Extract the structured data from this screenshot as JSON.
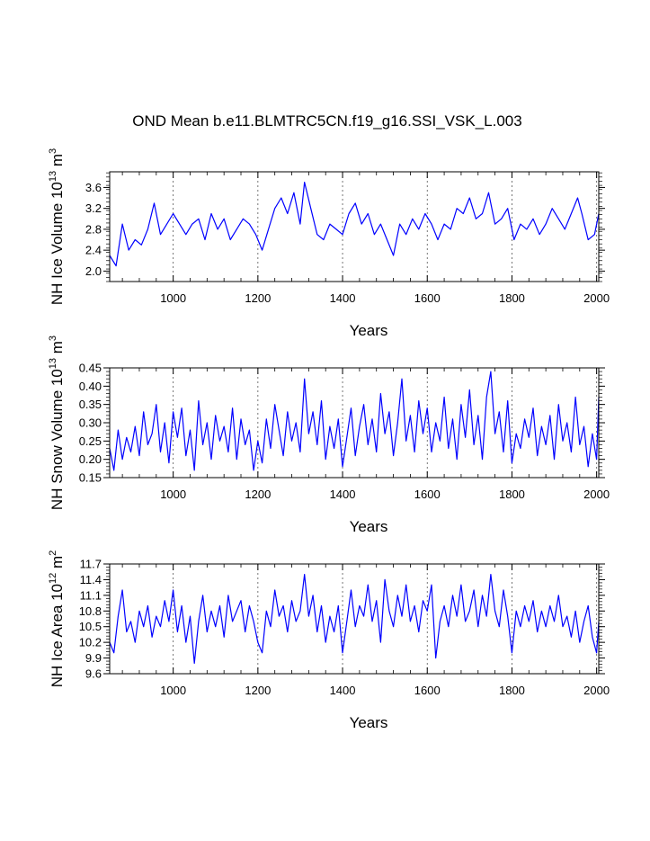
{
  "figure": {
    "title": "OND Mean b.e11.BLMTRC5CN.f19_g16.SSI_VSK_L.003"
  },
  "style": {
    "line_color": "#0000ff",
    "axis_color": "#000000",
    "grid_color": "#555555"
  },
  "chart_data": [
    {
      "type": "line",
      "ylabel": "NH Ice Volume 10",
      "ylabel_exp": "13",
      "ylabel_unit": " m",
      "ylabel_unit_exp": "3",
      "xlabel": "Years",
      "xlim": [
        850,
        2005
      ],
      "ylim": [
        1.8,
        3.9
      ],
      "xticks": [
        1000,
        1200,
        1400,
        1600,
        1800,
        2000
      ],
      "xtick_labels": [
        "1000",
        "1200",
        "1400",
        "1600",
        "1800",
        "2000"
      ],
      "yticks": [
        2.0,
        2.4,
        2.8,
        3.2,
        3.6
      ],
      "ytick_labels": [
        "2.0",
        "2.4",
        "2.8",
        "3.2",
        "3.6"
      ],
      "grid": "vertical dashed at major x ticks",
      "series": [
        {
          "x": [
            850,
            865,
            880,
            895,
            910,
            925,
            940,
            955,
            970,
            985,
            1000,
            1015,
            1030,
            1045,
            1060,
            1075,
            1090,
            1105,
            1120,
            1135,
            1150,
            1165,
            1180,
            1195,
            1210,
            1225,
            1240,
            1255,
            1270,
            1285,
            1300,
            1310,
            1325,
            1340,
            1355,
            1370,
            1385,
            1400,
            1415,
            1430,
            1445,
            1460,
            1475,
            1490,
            1505,
            1520,
            1535,
            1550,
            1565,
            1580,
            1595,
            1610,
            1625,
            1640,
            1655,
            1670,
            1685,
            1700,
            1715,
            1730,
            1745,
            1760,
            1775,
            1790,
            1805,
            1820,
            1835,
            1850,
            1865,
            1880,
            1895,
            1910,
            1925,
            1940,
            1955,
            1965,
            1980,
            1995,
            2005
          ],
          "y": [
            2.3,
            2.1,
            2.9,
            2.4,
            2.6,
            2.5,
            2.8,
            3.3,
            2.7,
            2.9,
            3.1,
            2.9,
            2.7,
            2.9,
            3.0,
            2.6,
            3.1,
            2.8,
            3.0,
            2.6,
            2.8,
            3.0,
            2.9,
            2.7,
            2.4,
            2.8,
            3.2,
            3.4,
            3.1,
            3.5,
            2.9,
            3.7,
            3.2,
            2.7,
            2.6,
            2.9,
            2.8,
            2.7,
            3.1,
            3.3,
            2.9,
            3.1,
            2.7,
            2.9,
            2.6,
            2.3,
            2.9,
            2.7,
            3.0,
            2.8,
            3.1,
            2.9,
            2.6,
            2.9,
            2.8,
            3.2,
            3.1,
            3.4,
            3.0,
            3.1,
            3.5,
            2.9,
            3.0,
            3.2,
            2.6,
            2.9,
            2.8,
            3.0,
            2.7,
            2.9,
            3.2,
            3.0,
            2.8,
            3.1,
            3.4,
            3.1,
            2.6,
            2.7,
            3.1
          ]
        }
      ]
    },
    {
      "type": "line",
      "ylabel": "NH Snow Volume 10",
      "ylabel_exp": "13",
      "ylabel_unit": " m",
      "ylabel_unit_exp": "3",
      "xlabel": "Years",
      "xlim": [
        850,
        2005
      ],
      "ylim": [
        0.15,
        0.45
      ],
      "xticks": [
        1000,
        1200,
        1400,
        1600,
        1800,
        2000
      ],
      "xtick_labels": [
        "1000",
        "1200",
        "1400",
        "1600",
        "1800",
        "2000"
      ],
      "yticks": [
        0.15,
        0.2,
        0.25,
        0.3,
        0.35,
        0.4,
        0.45
      ],
      "ytick_labels": [
        "0.15",
        "0.20",
        "0.25",
        "0.30",
        "0.35",
        "0.40",
        "0.45"
      ],
      "grid": "vertical dashed at major x ticks",
      "series": [
        {
          "x": [
            850,
            860,
            870,
            880,
            890,
            900,
            910,
            920,
            930,
            940,
            950,
            960,
            970,
            980,
            990,
            1000,
            1010,
            1020,
            1030,
            1040,
            1050,
            1060,
            1070,
            1080,
            1090,
            1100,
            1110,
            1120,
            1130,
            1140,
            1150,
            1160,
            1170,
            1180,
            1190,
            1200,
            1210,
            1220,
            1230,
            1240,
            1250,
            1260,
            1270,
            1280,
            1290,
            1300,
            1310,
            1320,
            1330,
            1340,
            1350,
            1360,
            1370,
            1380,
            1390,
            1400,
            1410,
            1420,
            1430,
            1440,
            1450,
            1460,
            1470,
            1480,
            1490,
            1500,
            1510,
            1520,
            1530,
            1540,
            1550,
            1560,
            1570,
            1580,
            1590,
            1600,
            1610,
            1620,
            1630,
            1640,
            1650,
            1660,
            1670,
            1680,
            1690,
            1700,
            1710,
            1720,
            1730,
            1740,
            1750,
            1760,
            1770,
            1780,
            1790,
            1800,
            1810,
            1820,
            1830,
            1840,
            1850,
            1860,
            1870,
            1880,
            1890,
            1900,
            1910,
            1920,
            1930,
            1940,
            1950,
            1960,
            1970,
            1980,
            1990,
            2000,
            2005
          ],
          "y": [
            0.23,
            0.17,
            0.28,
            0.2,
            0.26,
            0.22,
            0.29,
            0.21,
            0.33,
            0.24,
            0.27,
            0.35,
            0.22,
            0.3,
            0.19,
            0.33,
            0.26,
            0.34,
            0.21,
            0.28,
            0.17,
            0.36,
            0.24,
            0.3,
            0.2,
            0.32,
            0.25,
            0.29,
            0.22,
            0.34,
            0.2,
            0.31,
            0.24,
            0.28,
            0.17,
            0.25,
            0.19,
            0.31,
            0.23,
            0.35,
            0.28,
            0.21,
            0.33,
            0.25,
            0.3,
            0.22,
            0.42,
            0.27,
            0.33,
            0.24,
            0.36,
            0.2,
            0.29,
            0.23,
            0.31,
            0.18,
            0.26,
            0.34,
            0.21,
            0.29,
            0.35,
            0.24,
            0.31,
            0.22,
            0.38,
            0.27,
            0.33,
            0.21,
            0.3,
            0.42,
            0.25,
            0.32,
            0.22,
            0.36,
            0.27,
            0.34,
            0.22,
            0.3,
            0.25,
            0.37,
            0.23,
            0.31,
            0.2,
            0.35,
            0.26,
            0.39,
            0.24,
            0.32,
            0.2,
            0.37,
            0.44,
            0.27,
            0.33,
            0.22,
            0.36,
            0.19,
            0.27,
            0.23,
            0.31,
            0.26,
            0.34,
            0.21,
            0.29,
            0.24,
            0.32,
            0.2,
            0.35,
            0.25,
            0.3,
            0.22,
            0.37,
            0.24,
            0.29,
            0.18,
            0.27,
            0.2,
            0.37
          ]
        }
      ]
    },
    {
      "type": "line",
      "ylabel": "NH Ice Area 10",
      "ylabel_exp": "12",
      "ylabel_unit": " m",
      "ylabel_unit_exp": "2",
      "xlabel": "Years",
      "xlim": [
        850,
        2005
      ],
      "ylim": [
        9.6,
        11.7
      ],
      "xticks": [
        1000,
        1200,
        1400,
        1600,
        1800,
        2000
      ],
      "xtick_labels": [
        "1000",
        "1200",
        "1400",
        "1600",
        "1800",
        "2000"
      ],
      "yticks": [
        9.6,
        9.9,
        10.2,
        10.5,
        10.8,
        11.1,
        11.4,
        11.7
      ],
      "ytick_labels": [
        "9.6",
        "9.9",
        "10.2",
        "10.5",
        "10.8",
        "11.1",
        "11.4",
        "11.7"
      ],
      "grid": "vertical dashed at major x ticks",
      "series": [
        {
          "x": [
            850,
            860,
            870,
            880,
            890,
            900,
            910,
            920,
            930,
            940,
            950,
            960,
            970,
            980,
            990,
            1000,
            1010,
            1020,
            1030,
            1040,
            1050,
            1060,
            1070,
            1080,
            1090,
            1100,
            1110,
            1120,
            1130,
            1140,
            1150,
            1160,
            1170,
            1180,
            1190,
            1200,
            1210,
            1220,
            1230,
            1240,
            1250,
            1260,
            1270,
            1280,
            1290,
            1300,
            1310,
            1320,
            1330,
            1340,
            1350,
            1360,
            1370,
            1380,
            1390,
            1400,
            1410,
            1420,
            1430,
            1440,
            1450,
            1460,
            1470,
            1480,
            1490,
            1500,
            1510,
            1520,
            1530,
            1540,
            1550,
            1560,
            1570,
            1580,
            1590,
            1600,
            1610,
            1620,
            1630,
            1640,
            1650,
            1660,
            1670,
            1680,
            1690,
            1700,
            1710,
            1720,
            1730,
            1740,
            1750,
            1760,
            1770,
            1780,
            1790,
            1800,
            1810,
            1820,
            1830,
            1840,
            1850,
            1860,
            1870,
            1880,
            1890,
            1900,
            1910,
            1920,
            1930,
            1940,
            1950,
            1960,
            1970,
            1980,
            1990,
            2000,
            2005
          ],
          "y": [
            10.2,
            10.0,
            10.7,
            11.2,
            10.4,
            10.6,
            10.2,
            10.8,
            10.5,
            10.9,
            10.3,
            10.7,
            10.5,
            11.0,
            10.6,
            11.2,
            10.4,
            10.9,
            10.2,
            10.7,
            9.8,
            10.6,
            11.1,
            10.4,
            10.8,
            10.5,
            10.9,
            10.3,
            11.1,
            10.6,
            10.8,
            11.0,
            10.4,
            10.9,
            10.6,
            10.2,
            10.0,
            10.8,
            10.5,
            11.2,
            10.7,
            10.9,
            10.4,
            11.0,
            10.6,
            10.8,
            11.5,
            10.7,
            11.1,
            10.4,
            10.9,
            10.2,
            10.7,
            10.4,
            10.9,
            10.0,
            10.6,
            11.2,
            10.5,
            10.9,
            10.7,
            11.3,
            10.6,
            11.0,
            10.2,
            11.4,
            10.8,
            10.5,
            11.1,
            10.7,
            11.3,
            10.6,
            10.9,
            10.4,
            11.0,
            10.8,
            11.3,
            9.9,
            10.6,
            10.9,
            10.5,
            11.1,
            10.7,
            11.3,
            10.6,
            10.8,
            11.2,
            10.5,
            11.1,
            10.7,
            11.5,
            10.8,
            10.5,
            11.2,
            10.7,
            10.0,
            10.8,
            10.5,
            10.9,
            10.6,
            11.0,
            10.4,
            10.8,
            10.5,
            10.9,
            10.6,
            11.1,
            10.5,
            10.7,
            10.3,
            10.8,
            10.2,
            10.6,
            10.9,
            10.3,
            10.0,
            10.6
          ]
        }
      ]
    }
  ]
}
